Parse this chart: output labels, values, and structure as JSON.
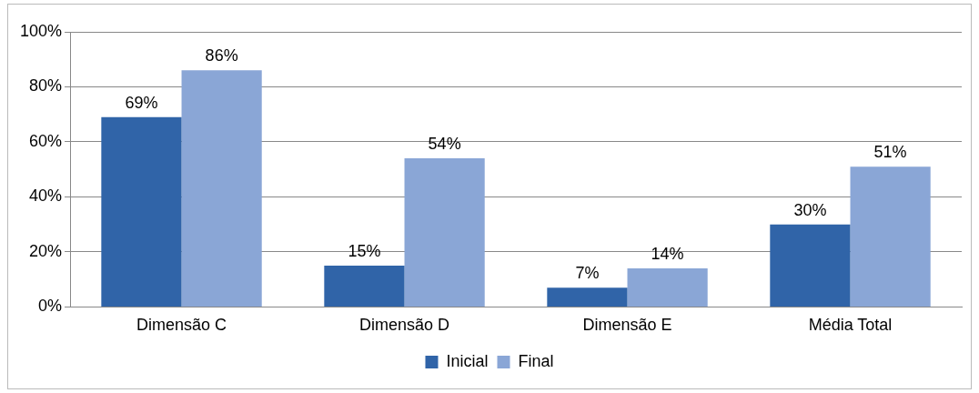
{
  "chart_data": {
    "type": "bar",
    "categories": [
      "Dimensão C",
      "Dimensão D",
      "Dimensão E",
      "Média Total"
    ],
    "series": [
      {
        "name": "Inicial",
        "color": "#3064a8",
        "values": [
          69,
          15,
          7,
          30
        ],
        "value_labels": [
          "69%",
          "15%",
          "7%",
          "30%"
        ]
      },
      {
        "name": "Final",
        "color": "#8aa6d6",
        "values": [
          86,
          54,
          14,
          51
        ],
        "value_labels": [
          "86%",
          "54%",
          "14%",
          "51%"
        ]
      }
    ],
    "ylim": [
      0,
      100
    ],
    "yticks": [
      {
        "value": 0,
        "label": "0%"
      },
      {
        "value": 20,
        "label": "20%"
      },
      {
        "value": 40,
        "label": "40%"
      },
      {
        "value": 60,
        "label": "60%"
      },
      {
        "value": 80,
        "label": "80%"
      },
      {
        "value": 100,
        "label": "100%"
      }
    ],
    "grid": "y",
    "legend": "bottom"
  }
}
